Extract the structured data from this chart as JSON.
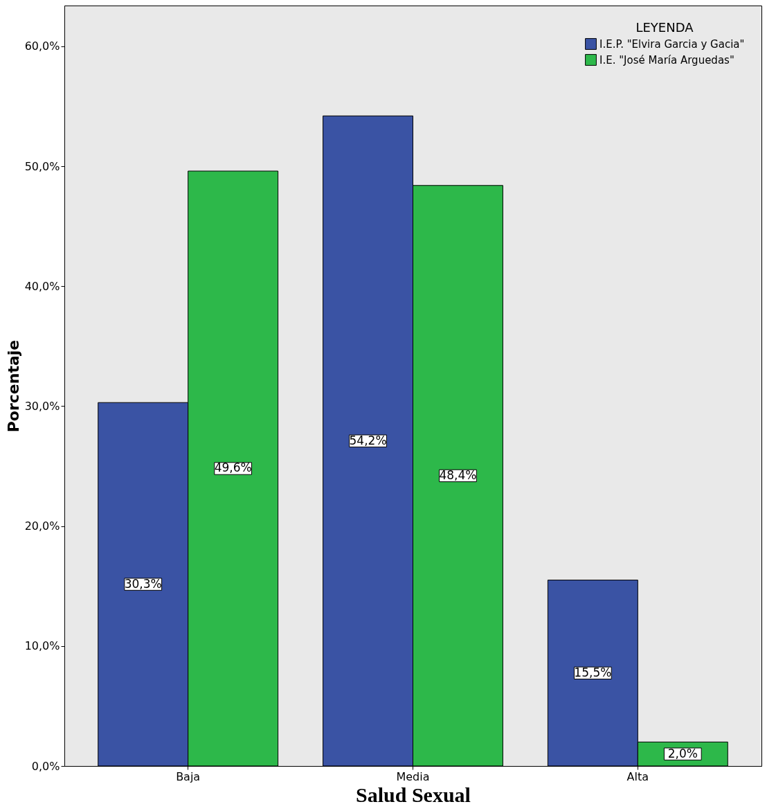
{
  "chart_data": {
    "type": "bar",
    "xlabel": "Salud Sexual",
    "ylabel": "Porcentaje",
    "legend_title": "LEYENDA",
    "legend": "top right",
    "grid": false,
    "categories": [
      "Baja",
      "Media",
      "Alta"
    ],
    "series": [
      {
        "name": "I.E.P. \"Elvira Garcia y Gacia\"",
        "color": "#3a53a4",
        "values": [
          30.3,
          54.2,
          15.5
        ],
        "value_labels": [
          "30,3%",
          "54,2%",
          "15,5%"
        ]
      },
      {
        "name": "I.E. \"José María Arguedas\"",
        "color": "#2db84a",
        "values": [
          49.6,
          48.4,
          2.0
        ],
        "value_labels": [
          "49,6%",
          "48,4%",
          "2,0%"
        ]
      }
    ],
    "ylim": [
      0,
      63.4
    ],
    "yticks": [
      {
        "value": 0,
        "label": "0,0%"
      },
      {
        "value": 10,
        "label": "10,0%"
      },
      {
        "value": 20,
        "label": "20,0%"
      },
      {
        "value": 30,
        "label": "30,0%"
      },
      {
        "value": 40,
        "label": "40,0%"
      },
      {
        "value": 50,
        "label": "50,0%"
      },
      {
        "value": 60,
        "label": "60,0%"
      }
    ]
  }
}
